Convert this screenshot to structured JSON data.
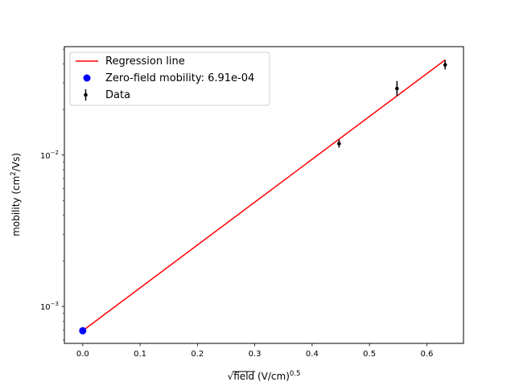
{
  "chart_data": {
    "type": "scatter",
    "title": "",
    "xlabel": {
      "radical": "√",
      "main": "field",
      "unit": " (V/cm)",
      "exponent": "0.5"
    },
    "ylabel": {
      "main": "mobility (cm",
      "superscript": "2",
      "suffix": "/Vs)"
    },
    "xlim": [
      -0.032,
      0.664
    ],
    "ylim": [
      0.00057,
      0.052
    ],
    "y_scale": "log",
    "grid": false,
    "legend_position": "upper-left",
    "x_ticks": [
      {
        "value": 0.0,
        "label": "0.0"
      },
      {
        "value": 0.1,
        "label": "0.1"
      },
      {
        "value": 0.2,
        "label": "0.2"
      },
      {
        "value": 0.3,
        "label": "0.3"
      },
      {
        "value": 0.4,
        "label": "0.4"
      },
      {
        "value": 0.5,
        "label": "0.5"
      },
      {
        "value": 0.6,
        "label": "0.6"
      }
    ],
    "y_ticks": [
      {
        "value": 0.001,
        "base": "10",
        "exp": "−3"
      },
      {
        "value": 0.01,
        "base": "10",
        "exp": "−2"
      }
    ],
    "series": [
      {
        "name": "Regression line",
        "kind": "line",
        "color": "#ff0000",
        "x": [
          0.0,
          0.632
        ],
        "y": [
          0.000691,
          0.0425
        ]
      },
      {
        "name": "Zero-field mobility: 6.91e-04",
        "kind": "point",
        "color": "#0000ff",
        "x": [
          0.0
        ],
        "y": [
          0.000691
        ]
      },
      {
        "name": "Data",
        "kind": "errorbar",
        "color": "#000000",
        "x": [
          0.447,
          0.548,
          0.632
        ],
        "y": [
          0.0119,
          0.0275,
          0.0394
        ],
        "y_lower": [
          0.0112,
          0.0245,
          0.0368
        ],
        "y_upper": [
          0.0126,
          0.0308,
          0.0424
        ]
      }
    ]
  }
}
